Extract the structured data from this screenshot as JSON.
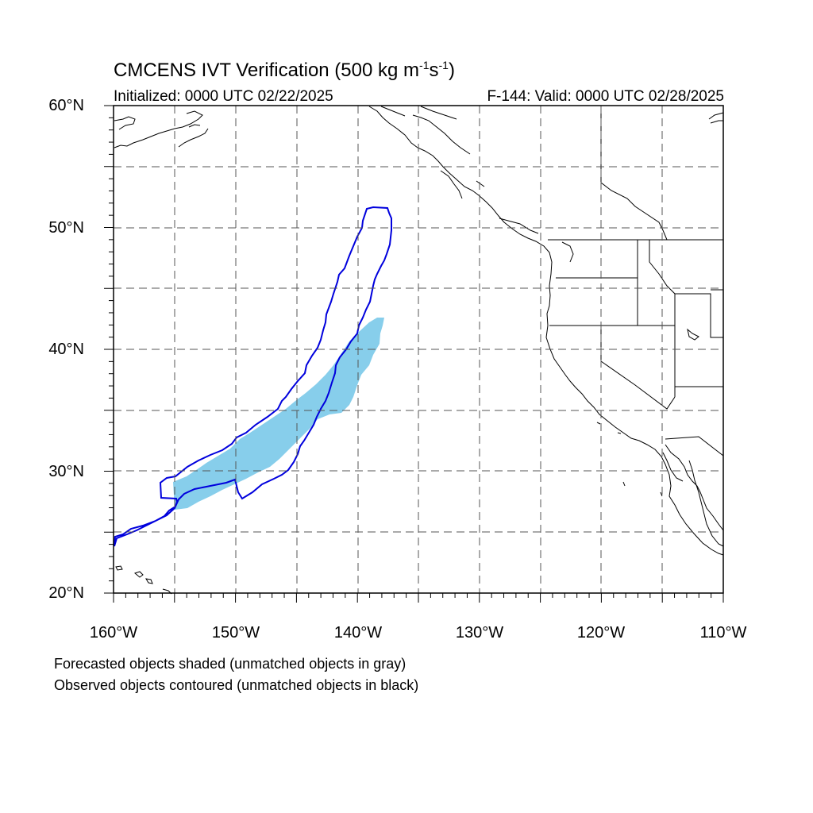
{
  "title": {
    "prefix": "CMCENS IVT Verification (500 kg m",
    "exp1": "-1",
    "mid": "s",
    "exp2": "-1",
    "suffix": ")"
  },
  "subtitle_left": "Initialized: 0000 UTC 02/22/2025",
  "subtitle_right": "F-144: Valid: 0000 UTC 02/28/2025",
  "lat_labels": [
    "60°N",
    "50°N",
    "40°N",
    "30°N",
    "20°N"
  ],
  "lon_labels": [
    "160°W",
    "150°W",
    "140°W",
    "130°W",
    "120°W",
    "110°W"
  ],
  "notes": [
    "Forecasted objects shaded (unmatched objects in gray)",
    "Observed objects contoured (unmatched objects in black)"
  ],
  "colors": {
    "forecast_fill": "#87ceeb",
    "observed_contour": "#0000dd",
    "coastline": "#000000",
    "grid": "#555555"
  },
  "extent": {
    "lon_min": -160,
    "lon_max": -110,
    "lat_min": 20,
    "lat_max": 60
  }
}
